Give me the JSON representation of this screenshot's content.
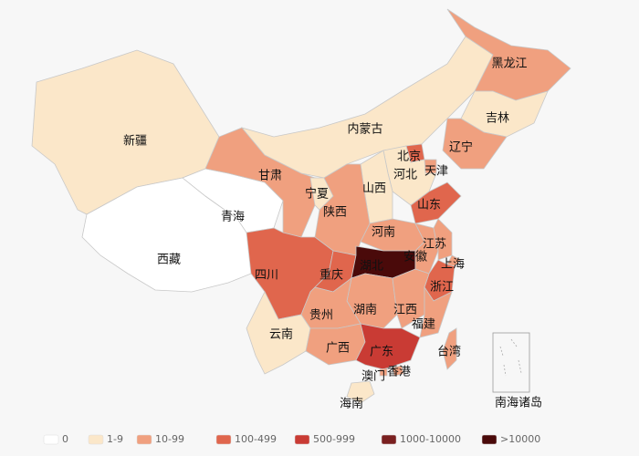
{
  "map": {
    "provinces": [
      {
        "name": "新疆",
        "color": "#fbe7c9"
      },
      {
        "name": "西藏",
        "color": "#ffffff"
      },
      {
        "name": "青海",
        "color": "#ffffff"
      },
      {
        "name": "甘肃",
        "color": "#f0a07f"
      },
      {
        "name": "内蒙古",
        "color": "#fbe7c9"
      },
      {
        "name": "黑龙江",
        "color": "#f0a07f"
      },
      {
        "name": "吉林",
        "color": "#fbe7c9"
      },
      {
        "name": "辽宁",
        "color": "#f0a07f"
      },
      {
        "name": "北京",
        "color": "#e0664d"
      },
      {
        "name": "天津",
        "color": "#f0a07f"
      },
      {
        "name": "河北",
        "color": "#fbe7c9"
      },
      {
        "name": "山西",
        "color": "#fbe7c9"
      },
      {
        "name": "山东",
        "color": "#e0664d"
      },
      {
        "name": "河南",
        "color": "#f0a07f"
      },
      {
        "name": "宁夏",
        "color": "#fbe7c9"
      },
      {
        "name": "陕西",
        "color": "#f0a07f"
      },
      {
        "name": "四川",
        "color": "#e0664d"
      },
      {
        "name": "重庆",
        "color": "#e0664d"
      },
      {
        "name": "湖北",
        "color": "#4a0a0a"
      },
      {
        "name": "安徽",
        "color": "#f0a07f"
      },
      {
        "name": "江苏",
        "color": "#f0a07f"
      },
      {
        "name": "上海",
        "color": "#f0a07f"
      },
      {
        "name": "浙江",
        "color": "#e0664d"
      },
      {
        "name": "湖南",
        "color": "#f0a07f"
      },
      {
        "name": "江西",
        "color": "#f0a07f"
      },
      {
        "name": "福建",
        "color": "#f0a07f"
      },
      {
        "name": "贵州",
        "color": "#f0a07f"
      },
      {
        "name": "云南",
        "color": "#fbe7c9"
      },
      {
        "name": "广西",
        "color": "#f0a07f"
      },
      {
        "name": "广东",
        "color": "#c93b34"
      },
      {
        "name": "香港",
        "color": "#f0a07f"
      },
      {
        "name": "澳门",
        "color": "#f0a07f"
      },
      {
        "name": "台湾",
        "color": "#f0a07f"
      },
      {
        "name": "海南",
        "color": "#fbe7c9"
      }
    ],
    "inset_label": "南海诸岛"
  },
  "legend": {
    "items": [
      {
        "label": "0",
        "color": "#ffffff"
      },
      {
        "label": "1-9",
        "color": "#fbe7c9"
      },
      {
        "label": "10-99",
        "color": "#f0a07f"
      },
      {
        "label": "100-499",
        "color": "#e0664d"
      },
      {
        "label": "500-999",
        "color": "#c93b34"
      },
      {
        "label": "1000-10000",
        "color": "#7a2020"
      },
      {
        "label": ">10000",
        "color": "#4a0a0a"
      }
    ]
  }
}
